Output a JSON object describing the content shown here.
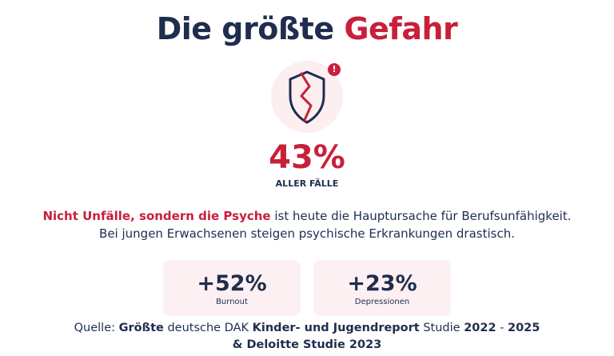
{
  "header": {
    "title_part1": "Die größte ",
    "title_accent": "Gefahr"
  },
  "badge": {
    "icon": "broken-shield-icon",
    "alert": "!"
  },
  "highlight": {
    "percent": "43%",
    "label": "ALLER FÄLLE"
  },
  "description": {
    "emphasis": "Nicht Unfälle, sondern die Psyche",
    "rest_line1": " ist heute die Hauptursache für Berufsunfähigkeit.",
    "line2": "Bei jungen Erwachsenen  steigen psychische Erkrankungen drastisch."
  },
  "stats": [
    {
      "value": "+52%",
      "label": "Burnout"
    },
    {
      "value": "+23%",
      "label": "Depressionen"
    }
  ],
  "source": {
    "prefix": "Quelle: ",
    "b1": "Größte",
    "t1": " deutsche DAK ",
    "b2": "Kinder- und Jugendreport",
    "t2": " Studie ",
    "b3": "2022",
    "t3": " - ",
    "b4": "2025",
    "b5": "& Deloitte Studie 2023"
  },
  "colors": {
    "accent": "#c8203a",
    "navy": "#1f2d4e",
    "tint": "#fdeef0"
  }
}
